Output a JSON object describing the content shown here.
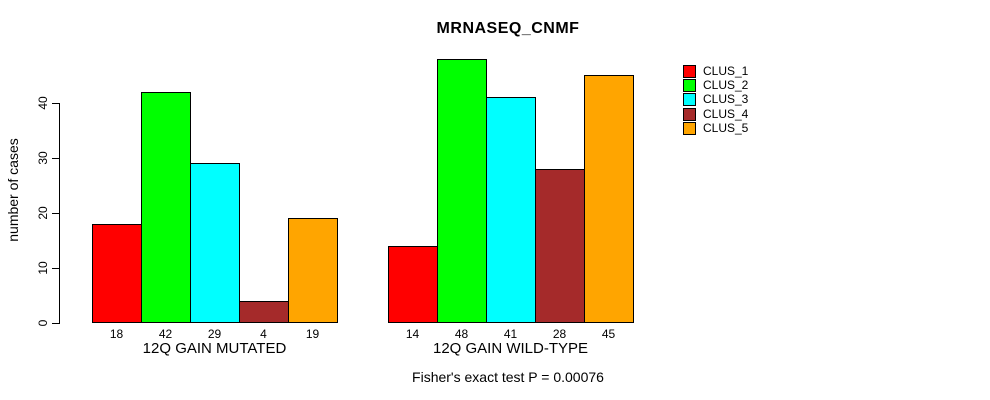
{
  "chart_data": {
    "type": "bar",
    "title": "MRNASEQ_CNMF",
    "ylabel": "number of cases",
    "xlabel": "",
    "annotation": "Fisher's exact test P = 0.00076",
    "categories": [
      "12Q GAIN MUTATED",
      "12Q GAIN WILD-TYPE"
    ],
    "series": [
      {
        "name": "CLUS_1",
        "color": "#FF0000",
        "values": [
          18,
          14
        ]
      },
      {
        "name": "CLUS_2",
        "color": "#00FF00",
        "values": [
          42,
          48
        ]
      },
      {
        "name": "CLUS_3",
        "color": "#00FFFF",
        "values": [
          29,
          41
        ]
      },
      {
        "name": "CLUS_4",
        "color": "#A52A2A",
        "values": [
          4,
          28
        ]
      },
      {
        "name": "CLUS_5",
        "color": "#FFA500",
        "values": [
          19,
          45
        ]
      }
    ],
    "bar_value_labels": {
      "12Q GAIN MUTATED": [
        18,
        42,
        29,
        4,
        19
      ],
      "12Q GAIN WILD-TYPE": [
        14,
        48,
        41,
        28,
        45
      ]
    },
    "yticks": [
      0,
      10,
      20,
      30,
      40
    ],
    "ylim": [
      0,
      48
    ],
    "grid": false,
    "legend_position": "right",
    "legend": [
      {
        "label": "CLUS_1",
        "color": "#FF0000"
      },
      {
        "label": "CLUS_2",
        "color": "#00FF00"
      },
      {
        "label": "CLUS_3",
        "color": "#00FFFF"
      },
      {
        "label": "CLUS_4",
        "color": "#A52A2A"
      },
      {
        "label": "CLUS_5",
        "color": "#FFA500"
      }
    ]
  }
}
